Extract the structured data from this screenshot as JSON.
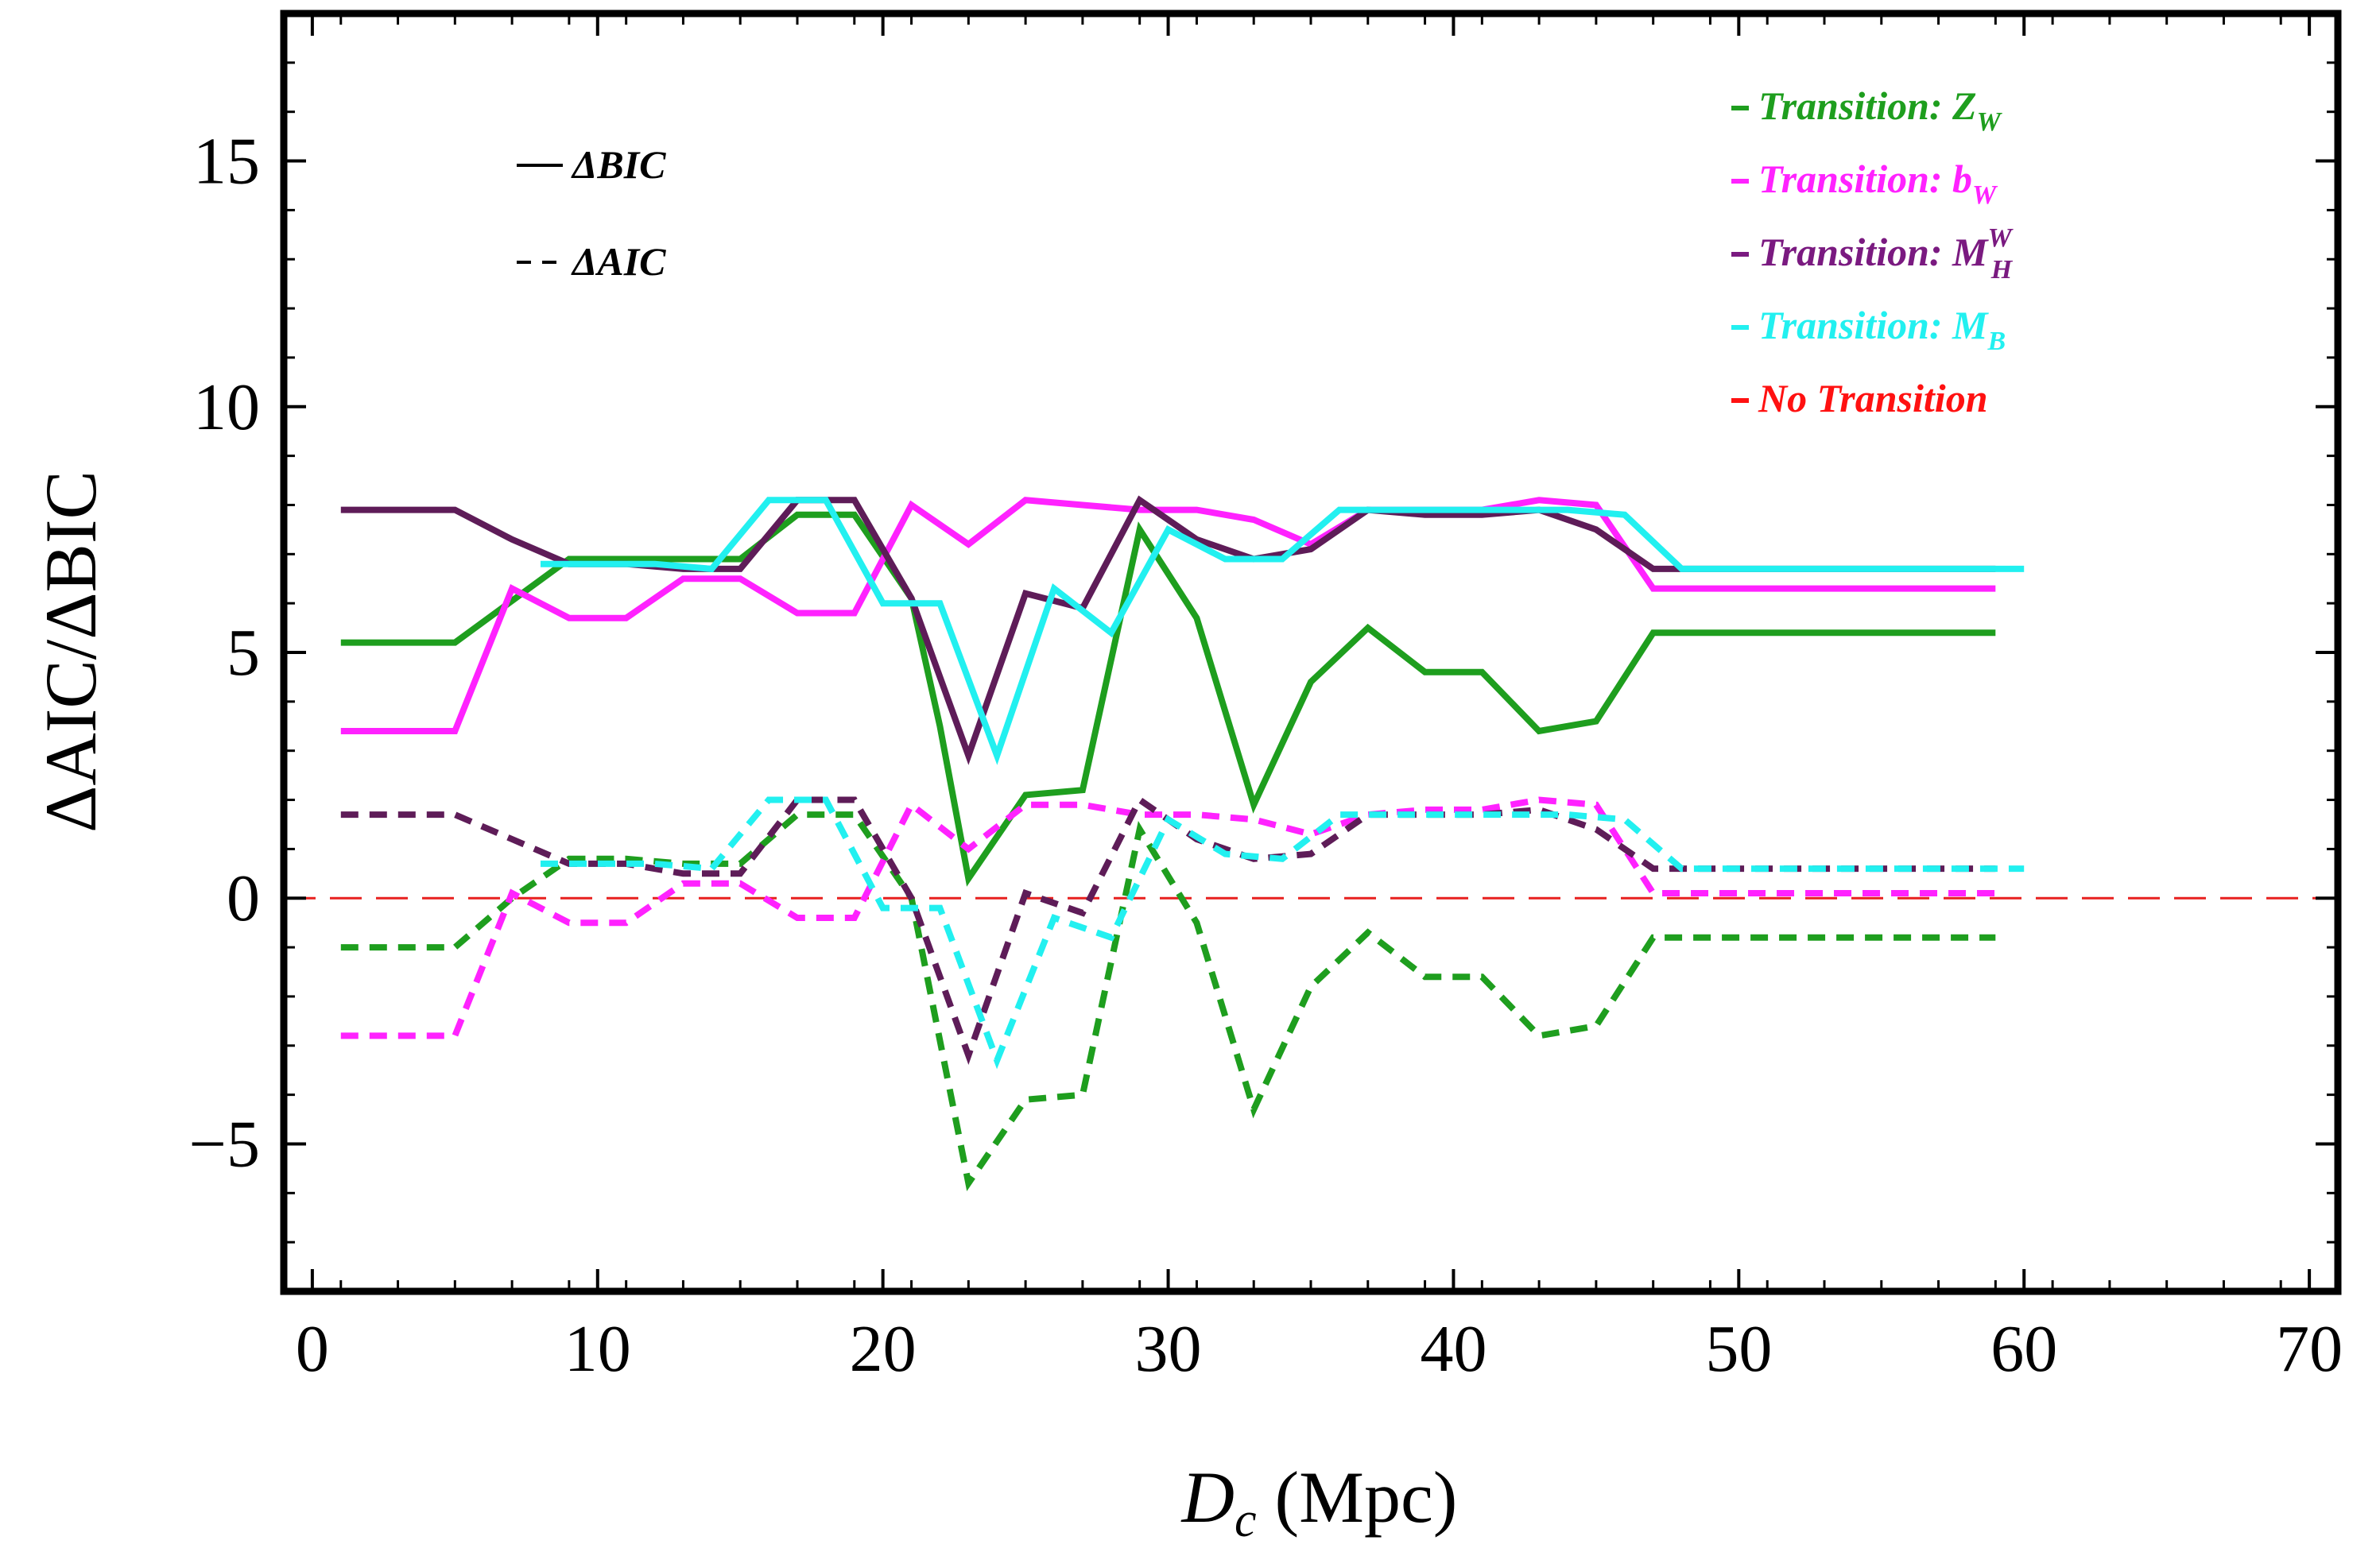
{
  "chart_data": {
    "type": "line",
    "title": "",
    "xlabel_main": "D",
    "xlabel_sub": "c",
    "xlabel_unit": " (Mpc)",
    "ylabel": "ΔAIC/ΔBIC",
    "xlim": [
      -1,
      71
    ],
    "ylim": [
      -8,
      18
    ],
    "xticks": [
      0,
      10,
      20,
      30,
      40,
      50,
      60,
      70
    ],
    "xtick_labels": [
      "0",
      "10",
      "20",
      "30",
      "40",
      "50",
      "60",
      "70"
    ],
    "yticks": [
      -5,
      0,
      5,
      10,
      15
    ],
    "ytick_labels": [
      "−5",
      "0",
      "5",
      "10",
      "15"
    ],
    "reference_line": {
      "y": 0,
      "color": "#e8201e",
      "style": "dashed",
      "label": "No Transition"
    },
    "style_legend": [
      {
        "text": "ΔBIC",
        "dash": "solid"
      },
      {
        "text": "ΔAIC",
        "dash": "dashed"
      }
    ],
    "series_legend": [
      {
        "prefix": "Transition: ",
        "main": "Z",
        "sub": "W",
        "sup": "",
        "color": "#1e9e1e"
      },
      {
        "prefix": "Transition: ",
        "main": "b",
        "sub": "W",
        "sup": "",
        "color": "#ff22ff"
      },
      {
        "prefix": "Transition: ",
        "main": "M",
        "sub": "H",
        "sup": "W",
        "color": "#7a1a80"
      },
      {
        "prefix": "Transition: ",
        "main": "M",
        "sub": "B",
        "sup": "",
        "color": "#22f0f0"
      },
      {
        "prefix": "",
        "main": "No Transition",
        "sub": "",
        "sup": "",
        "color": "#ff1111"
      }
    ],
    "series": [
      {
        "name": "ΔBIC Transition: Z_W",
        "color": "#1e9e1e",
        "dash": "solid",
        "x": [
          1,
          5,
          9,
          11,
          15,
          17,
          19,
          21,
          22,
          23,
          25,
          27,
          29,
          31,
          33,
          35,
          37,
          39,
          41,
          43,
          45,
          47,
          59
        ],
        "y": [
          5.2,
          5.2,
          6.9,
          6.9,
          6.9,
          7.8,
          7.8,
          6.1,
          3.5,
          0.4,
          2.1,
          2.2,
          7.5,
          5.7,
          1.9,
          4.4,
          5.5,
          4.6,
          4.6,
          3.4,
          3.6,
          5.4,
          5.4
        ]
      },
      {
        "name": "ΔBIC Transition: b_W",
        "color": "#ff22ff",
        "dash": "solid",
        "x": [
          1,
          5,
          7,
          9,
          11,
          13,
          15,
          17,
          19,
          21,
          23,
          25,
          27,
          29,
          31,
          33,
          35,
          37,
          39,
          41,
          43,
          45,
          47,
          59
        ],
        "y": [
          3.4,
          3.4,
          6.3,
          5.7,
          5.7,
          6.5,
          6.5,
          5.8,
          5.8,
          8.0,
          7.2,
          8.1,
          8.0,
          7.9,
          7.9,
          7.7,
          7.2,
          7.9,
          7.9,
          7.9,
          8.1,
          8.0,
          6.3,
          6.3
        ]
      },
      {
        "name": "ΔBIC Transition: M_H^W",
        "color": "#5e1c58",
        "dash": "solid",
        "x": [
          1,
          5,
          7,
          9,
          11,
          13,
          15,
          17,
          19,
          21,
          23,
          25,
          27,
          29,
          31,
          33,
          35,
          37,
          39,
          41,
          43,
          45,
          47,
          59
        ],
        "y": [
          7.9,
          7.9,
          7.3,
          6.8,
          6.8,
          6.7,
          6.7,
          8.1,
          8.1,
          6.1,
          2.9,
          6.2,
          5.9,
          8.1,
          7.3,
          6.9,
          7.1,
          7.9,
          7.8,
          7.8,
          7.9,
          7.5,
          6.7,
          6.7
        ]
      },
      {
        "name": "ΔBIC Transition: M_B",
        "color": "#22f0f0",
        "dash": "solid",
        "x": [
          8,
          12,
          14,
          16,
          18,
          20,
          22,
          24,
          26,
          28,
          30,
          32,
          34,
          36,
          38,
          40,
          42,
          44,
          46,
          48,
          60
        ],
        "y": [
          6.8,
          6.8,
          6.7,
          8.1,
          8.1,
          6.0,
          6.0,
          2.9,
          6.3,
          5.4,
          7.5,
          6.9,
          6.9,
          7.9,
          7.9,
          7.9,
          7.9,
          7.9,
          7.8,
          6.7,
          6.7
        ]
      },
      {
        "name": "ΔAIC Transition: Z_W",
        "color": "#1e9e1e",
        "dash": "dashed",
        "x": [
          1,
          5,
          7,
          9,
          11,
          13,
          15,
          17,
          19,
          21,
          23,
          25,
          27,
          29,
          31,
          33,
          35,
          37,
          39,
          41,
          43,
          45,
          47,
          59
        ],
        "y": [
          -1.0,
          -1.0,
          0.0,
          0.8,
          0.8,
          0.7,
          0.7,
          1.7,
          1.7,
          0.0,
          -5.8,
          -4.1,
          -4.0,
          1.4,
          -0.5,
          -4.3,
          -1.8,
          -0.7,
          -1.6,
          -1.6,
          -2.8,
          -2.6,
          -0.8,
          -0.8
        ]
      },
      {
        "name": "ΔAIC Transition: b_W",
        "color": "#ff22ff",
        "dash": "dashed",
        "x": [
          1,
          5,
          7,
          9,
          11,
          13,
          15,
          17,
          19,
          21,
          23,
          25,
          27,
          29,
          31,
          33,
          35,
          37,
          39,
          41,
          43,
          45,
          47,
          59
        ],
        "y": [
          -2.8,
          -2.8,
          0.1,
          -0.5,
          -0.5,
          0.3,
          0.3,
          -0.4,
          -0.4,
          1.9,
          1.0,
          1.9,
          1.9,
          1.7,
          1.7,
          1.6,
          1.3,
          1.7,
          1.8,
          1.8,
          2.0,
          1.9,
          0.1,
          0.1
        ]
      },
      {
        "name": "ΔAIC Transition: M_H^W",
        "color": "#5e1c58",
        "dash": "dashed",
        "x": [
          1,
          5,
          7,
          9,
          11,
          13,
          15,
          17,
          19,
          21,
          23,
          25,
          27,
          29,
          31,
          33,
          35,
          37,
          39,
          41,
          43,
          45,
          47,
          59
        ],
        "y": [
          1.7,
          1.7,
          1.2,
          0.7,
          0.7,
          0.5,
          0.5,
          2.0,
          2.0,
          0.0,
          -3.2,
          0.1,
          -0.3,
          2.0,
          1.2,
          0.8,
          0.9,
          1.7,
          1.7,
          1.7,
          1.8,
          1.4,
          0.6,
          0.6
        ]
      },
      {
        "name": "ΔAIC Transition: M_B",
        "color": "#22f0f0",
        "dash": "dashed",
        "x": [
          8,
          12,
          14,
          16,
          18,
          20,
          22,
          24,
          26,
          28,
          30,
          32,
          34,
          36,
          38,
          40,
          42,
          44,
          46,
          48,
          60
        ],
        "y": [
          0.7,
          0.7,
          0.6,
          2.0,
          2.0,
          -0.2,
          -0.2,
          -3.3,
          -0.4,
          -0.8,
          1.6,
          0.9,
          0.8,
          1.7,
          1.7,
          1.7,
          1.7,
          1.7,
          1.6,
          0.6,
          0.6
        ]
      }
    ]
  }
}
